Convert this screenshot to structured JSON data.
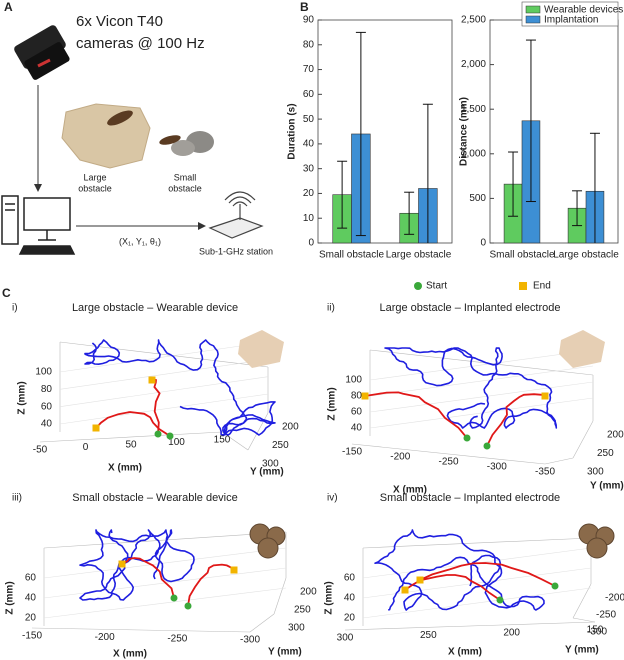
{
  "panel_labels": [
    "A",
    "B",
    "C"
  ],
  "panel_a": {
    "camera_line1": "6x Vicon T40",
    "camera_line2": "cameras @ 100 Hz",
    "large_obstacle": [
      "Large",
      "obstacle"
    ],
    "small_obstacle": [
      "Small",
      "obstacle"
    ],
    "pose": "(X₁, Y₁, θ₁)",
    "station": "Sub-1-GHz station"
  },
  "chart_data": [
    {
      "type": "bar",
      "ylabel": "Duration (s)",
      "categories": [
        "Small obstacle",
        "Large obstacle"
      ],
      "series": [
        {
          "name": "Wearable devices",
          "color": "#5fcb5f",
          "values": [
            19.5,
            12
          ],
          "errors": [
            13.5,
            8.5
          ]
        },
        {
          "name": "Implantation",
          "color": "#3d8fd4",
          "values": [
            44,
            22
          ],
          "errors": [
            41,
            34
          ]
        }
      ],
      "ylim": [
        0,
        90
      ],
      "yticks": [
        0,
        10,
        20,
        30,
        40,
        50,
        60,
        70,
        80,
        90
      ],
      "legend": false
    },
    {
      "type": "bar",
      "ylabel": "Distance (mm)",
      "categories": [
        "Small obstacle",
        "Large obstacle"
      ],
      "series": [
        {
          "name": "Wearable devices",
          "color": "#5fcb5f",
          "values": [
            660,
            390
          ],
          "errors": [
            360,
            195
          ]
        },
        {
          "name": "Implantation",
          "color": "#3d8fd4",
          "values": [
            1370,
            580
          ],
          "errors": [
            905,
            650
          ]
        }
      ],
      "ylim": [
        0,
        2500
      ],
      "yticks": [
        0,
        500,
        {
          "value": 1000,
          "label": "1,000"
        },
        {
          "value": 1500,
          "label": "1,500"
        },
        {
          "value": 2000,
          "label": "2,000"
        },
        {
          "value": 2500,
          "label": "2,500"
        }
      ],
      "legend": "upper right"
    }
  ],
  "panel_c": {
    "legend": [
      "Start",
      "End"
    ],
    "plots": [
      {
        "label": "i)",
        "title": "Large obstacle – Wearable device",
        "zlabel": "Z (mm)",
        "xlabel": "X (mm)",
        "ylabel": "Y (mm)",
        "zticks": [
          100,
          80,
          60,
          40
        ],
        "xticks": [
          -50,
          0,
          50,
          100,
          150
        ],
        "yticks": [
          200,
          250,
          300
        ]
      },
      {
        "label": "ii)",
        "title": "Large obstacle – Implanted electrode",
        "zlabel": "Z (mm)",
        "xlabel": "X (mm)",
        "ylabel": "Y (mm)",
        "zticks": [
          100,
          80,
          60,
          40
        ],
        "xticks": [
          -150,
          -200,
          -250,
          -300,
          -350
        ],
        "yticks": [
          200,
          250,
          300
        ]
      },
      {
        "label": "iii)",
        "title": "Small obstacle – Wearable device",
        "zlabel": "Z (mm)",
        "xlabel": "X (mm)",
        "ylabel": "Y (mm)",
        "zticks": [
          60,
          40,
          20
        ],
        "xticks": [
          -150,
          -200,
          -250,
          -300
        ],
        "yticks": [
          200,
          250,
          300
        ]
      },
      {
        "label": "iv)",
        "title": "Small obstacle – Implanted electrode",
        "zlabel": "Z (mm)",
        "xlabel": "X (mm)",
        "ylabel": "Y (mm)",
        "zticks": [
          60,
          40,
          20
        ],
        "xticks": [
          300,
          250,
          200,
          150
        ],
        "yticks": [
          -200,
          -250,
          -300
        ]
      }
    ]
  }
}
